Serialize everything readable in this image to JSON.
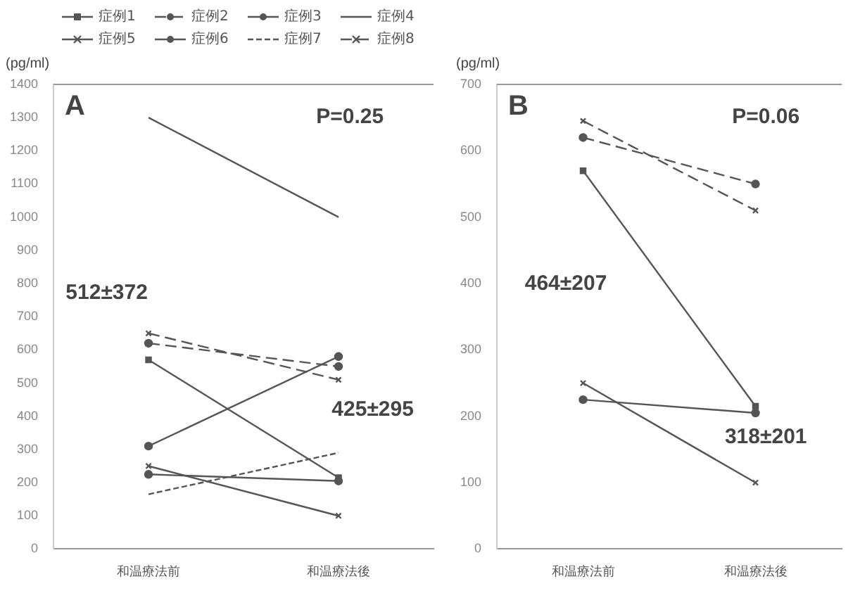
{
  "chart_data": [
    {
      "type": "line",
      "title": "A",
      "ylabel": "(pg/ml)",
      "categories": [
        "和温療法前",
        "和温療法後"
      ],
      "ylim": [
        0,
        1400
      ],
      "yticks": [
        0,
        100,
        200,
        300,
        400,
        500,
        600,
        700,
        800,
        900,
        1000,
        1100,
        1200,
        1300,
        1400
      ],
      "grid": false,
      "legend": "top",
      "annotations": [
        "P=0.25",
        "512±372",
        "425±295"
      ],
      "series": [
        {
          "name": "症例1",
          "color": "#555555",
          "values": [
            570,
            215
          ],
          "line_style": "solid",
          "marker": "square"
        },
        {
          "name": "症例2",
          "color": "#555555",
          "values": [
            620,
            550
          ],
          "line_style": "dashed",
          "marker": "circle"
        },
        {
          "name": "症例3",
          "color": "#555555",
          "values": [
            310,
            580
          ],
          "line_style": "solid",
          "marker": "circle"
        },
        {
          "name": "症例4",
          "color": "#555555",
          "values": [
            1300,
            1000
          ],
          "line_style": "solid",
          "marker": "none"
        },
        {
          "name": "症例5",
          "color": "#555555",
          "values": [
            250,
            100
          ],
          "line_style": "solid",
          "marker": "cross"
        },
        {
          "name": "症例6",
          "color": "#555555",
          "values": [
            225,
            205
          ],
          "line_style": "solid",
          "marker": "circle"
        },
        {
          "name": "症例7",
          "color": "#555555",
          "values": [
            165,
            290
          ],
          "line_style": "dotted",
          "marker": "none"
        },
        {
          "name": "症例8",
          "color": "#555555",
          "values": [
            650,
            510
          ],
          "line_style": "dashed",
          "marker": "cross"
        }
      ]
    },
    {
      "type": "line",
      "title": "B",
      "ylabel": "(pg/ml)",
      "categories": [
        "和温療法前",
        "和温療法後"
      ],
      "ylim": [
        0,
        700
      ],
      "yticks": [
        0,
        100,
        200,
        300,
        400,
        500,
        600,
        700
      ],
      "grid": false,
      "legend": false,
      "annotations": [
        "P=0.06",
        "464±207",
        "318±201"
      ],
      "series": [
        {
          "color": "#555555",
          "values": [
            570,
            215
          ],
          "line_style": "solid",
          "marker": "square"
        },
        {
          "color": "#555555",
          "values": [
            620,
            550
          ],
          "line_style": "dashed",
          "marker": "circle"
        },
        {
          "color": "#555555",
          "values": [
            250,
            100
          ],
          "line_style": "solid",
          "marker": "cross"
        },
        {
          "color": "#555555",
          "values": [
            225,
            205
          ],
          "line_style": "solid",
          "marker": "circle"
        },
        {
          "color": "#555555",
          "values": [
            645,
            510
          ],
          "line_style": "dashed",
          "marker": "cross"
        }
      ]
    }
  ]
}
